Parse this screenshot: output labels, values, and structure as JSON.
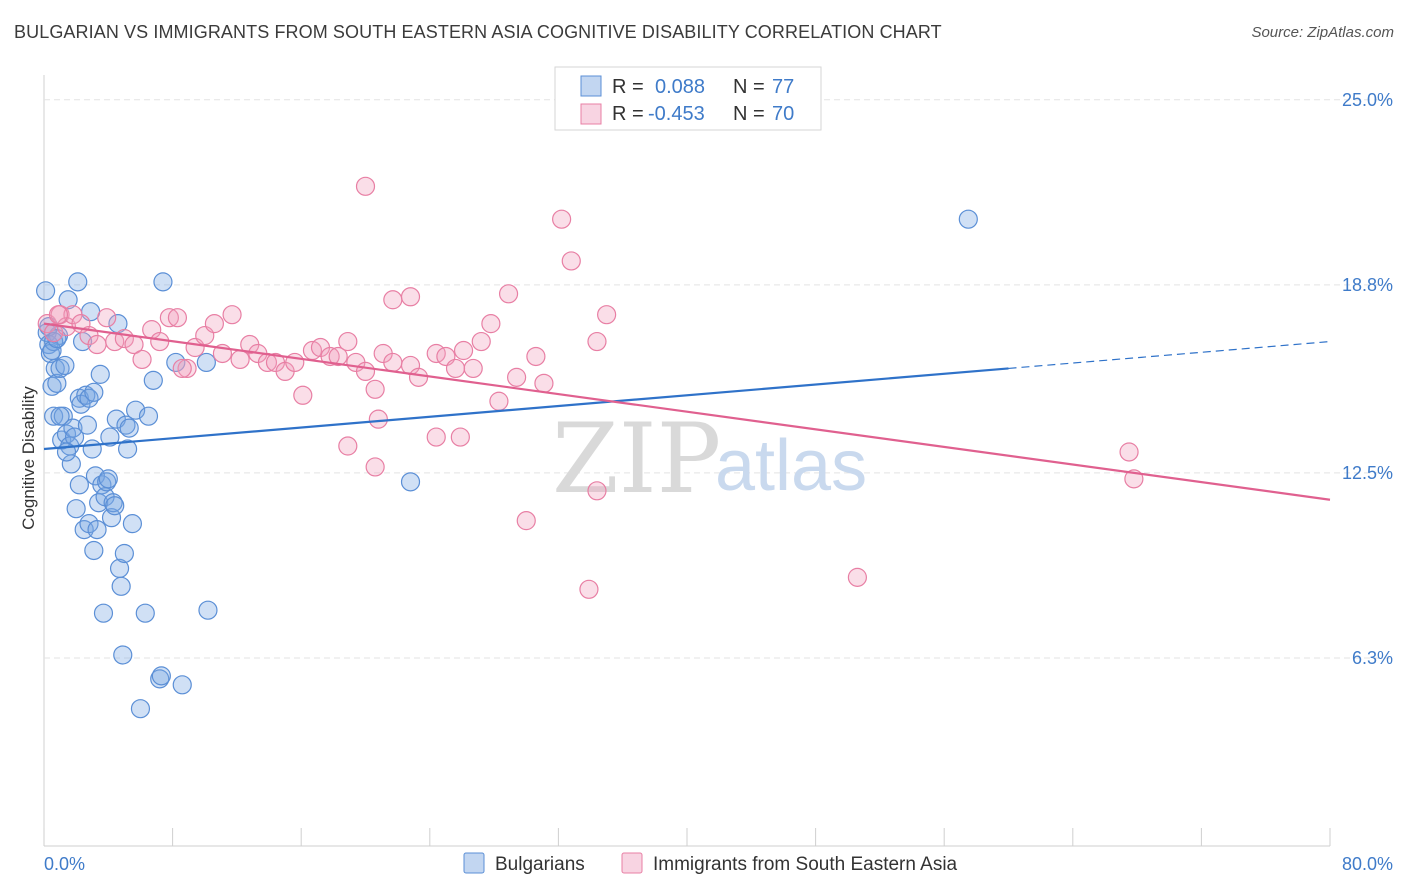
{
  "title": "BULGARIAN VS IMMIGRANTS FROM SOUTH EASTERN ASIA COGNITIVE DISABILITY CORRELATION CHART",
  "source": "Source: ZipAtlas.com",
  "watermark": {
    "zip": "ZIP",
    "atlas": "atlas"
  },
  "colors": {
    "blue": "#5b8fd6",
    "blue_fill": "rgba(120,165,225,0.35)",
    "blue_line": "#2f72c9",
    "pink": "#e87fa4",
    "pink_fill": "rgba(240,160,190,0.35)",
    "pink_line": "#e0608f",
    "tick": "#3f7bc9",
    "grid": "#e3e3e3"
  },
  "chart_data": {
    "type": "scatter",
    "xlabel": "",
    "ylabel": "Cognitive Disability",
    "xlim": [
      0,
      80
    ],
    "ylim": [
      0,
      26.5
    ],
    "x_tick_labels": [
      "0.0%",
      "80.0%"
    ],
    "y_ticks": [
      {
        "value": 25.0,
        "label": "25.0%"
      },
      {
        "value": 18.8,
        "label": "18.8%"
      },
      {
        "value": 12.5,
        "label": "12.5%"
      },
      {
        "value": 6.3,
        "label": "6.3%"
      }
    ],
    "legend": [
      {
        "r_label": "R =",
        "r_value": "0.088",
        "n_label": "N =",
        "n_value": "77"
      },
      {
        "r_label": "R =",
        "r_value": "-0.453",
        "n_label": "N =",
        "n_value": "70"
      }
    ],
    "series": [
      {
        "name": "Bulgarians",
        "color": "blue",
        "trend": {
          "x0": 0,
          "y0": 13.3,
          "x1": 60,
          "y1": 16.0,
          "dash_x1": 80,
          "dash_y1": 16.9
        },
        "points": [
          [
            0.1,
            18.6
          ],
          [
            0.2,
            17.2
          ],
          [
            0.3,
            16.8
          ],
          [
            0.4,
            16.5
          ],
          [
            0.5,
            15.4
          ],
          [
            0.6,
            14.4
          ],
          [
            0.7,
            16.0
          ],
          [
            0.8,
            15.5
          ],
          [
            0.9,
            17.1
          ],
          [
            1.0,
            16.0
          ],
          [
            1.1,
            13.6
          ],
          [
            1.2,
            14.4
          ],
          [
            1.3,
            16.1
          ],
          [
            1.4,
            13.8
          ],
          [
            1.5,
            18.3
          ],
          [
            1.6,
            13.4
          ],
          [
            1.7,
            12.8
          ],
          [
            1.8,
            14.0
          ],
          [
            1.9,
            13.7
          ],
          [
            2.0,
            11.3
          ],
          [
            2.1,
            18.9
          ],
          [
            2.2,
            15.0
          ],
          [
            2.3,
            14.8
          ],
          [
            2.4,
            16.9
          ],
          [
            2.5,
            10.6
          ],
          [
            2.6,
            15.1
          ],
          [
            2.7,
            14.1
          ],
          [
            2.8,
            10.8
          ],
          [
            2.9,
            17.9
          ],
          [
            3.0,
            13.3
          ],
          [
            3.1,
            9.9
          ],
          [
            3.2,
            12.4
          ],
          [
            3.3,
            10.6
          ],
          [
            3.4,
            11.5
          ],
          [
            3.5,
            15.8
          ],
          [
            3.6,
            12.1
          ],
          [
            3.7,
            7.8
          ],
          [
            3.8,
            11.7
          ],
          [
            3.9,
            12.2
          ],
          [
            4.0,
            12.3
          ],
          [
            4.1,
            13.7
          ],
          [
            4.2,
            11.0
          ],
          [
            4.3,
            11.5
          ],
          [
            4.4,
            11.4
          ],
          [
            4.5,
            14.3
          ],
          [
            4.6,
            17.5
          ],
          [
            4.7,
            9.3
          ],
          [
            4.8,
            8.7
          ],
          [
            4.9,
            6.4
          ],
          [
            5.0,
            9.8
          ],
          [
            5.1,
            14.1
          ],
          [
            5.2,
            13.3
          ],
          [
            5.3,
            14.0
          ],
          [
            5.5,
            10.8
          ],
          [
            5.7,
            14.6
          ],
          [
            6.0,
            4.6
          ],
          [
            6.3,
            7.8
          ],
          [
            6.5,
            14.4
          ],
          [
            6.8,
            15.6
          ],
          [
            7.2,
            5.6
          ],
          [
            7.3,
            5.7
          ],
          [
            7.4,
            18.9
          ],
          [
            8.2,
            16.2
          ],
          [
            8.6,
            5.4
          ],
          [
            10.1,
            16.2
          ],
          [
            10.2,
            7.9
          ],
          [
            22.8,
            12.2
          ],
          [
            57.5,
            21.0
          ],
          [
            0.3,
            17.4
          ],
          [
            0.6,
            16.9
          ],
          [
            1.0,
            14.4
          ],
          [
            1.4,
            13.2
          ],
          [
            2.2,
            12.1
          ],
          [
            2.8,
            15.0
          ],
          [
            3.1,
            15.2
          ],
          [
            0.5,
            16.6
          ],
          [
            0.8,
            17.0
          ]
        ]
      },
      {
        "name": "Immigrants from South Eastern Asia",
        "color": "pink",
        "trend": {
          "x0": 0,
          "y0": 17.5,
          "x1": 80,
          "y1": 11.6
        },
        "points": [
          [
            0.2,
            17.5
          ],
          [
            0.6,
            17.2
          ],
          [
            1.0,
            17.8
          ],
          [
            1.4,
            17.4
          ],
          [
            1.8,
            17.8
          ],
          [
            2.3,
            17.5
          ],
          [
            2.8,
            17.1
          ],
          [
            3.3,
            16.8
          ],
          [
            3.9,
            17.7
          ],
          [
            4.4,
            16.9
          ],
          [
            5.0,
            17.0
          ],
          [
            5.6,
            16.8
          ],
          [
            6.1,
            16.3
          ],
          [
            6.7,
            17.3
          ],
          [
            7.2,
            16.9
          ],
          [
            7.8,
            17.7
          ],
          [
            8.3,
            17.7
          ],
          [
            8.9,
            16.0
          ],
          [
            9.4,
            16.7
          ],
          [
            10.0,
            17.1
          ],
          [
            10.6,
            17.5
          ],
          [
            11.1,
            16.5
          ],
          [
            11.7,
            17.8
          ],
          [
            12.2,
            16.3
          ],
          [
            12.8,
            16.8
          ],
          [
            13.3,
            16.5
          ],
          [
            13.9,
            16.2
          ],
          [
            14.4,
            16.2
          ],
          [
            15.0,
            15.9
          ],
          [
            15.6,
            16.2
          ],
          [
            16.1,
            15.1
          ],
          [
            16.7,
            16.6
          ],
          [
            17.2,
            16.7
          ],
          [
            17.8,
            16.4
          ],
          [
            18.3,
            16.4
          ],
          [
            18.9,
            16.9
          ],
          [
            19.4,
            16.2
          ],
          [
            20.0,
            15.9
          ],
          [
            20.6,
            15.3
          ],
          [
            21.1,
            16.5
          ],
          [
            21.7,
            16.2
          ],
          [
            22.8,
            16.1
          ],
          [
            23.3,
            15.7
          ],
          [
            24.4,
            16.5
          ],
          [
            25.0,
            16.4
          ],
          [
            25.6,
            16.0
          ],
          [
            26.1,
            16.6
          ],
          [
            26.7,
            16.0
          ],
          [
            27.2,
            16.9
          ],
          [
            27.8,
            17.5
          ],
          [
            28.3,
            14.9
          ],
          [
            29.4,
            15.7
          ],
          [
            30.6,
            16.4
          ],
          [
            31.1,
            15.5
          ],
          [
            32.2,
            21.0
          ],
          [
            32.8,
            19.6
          ],
          [
            34.4,
            16.9
          ],
          [
            35.0,
            17.8
          ],
          [
            20.0,
            22.1
          ],
          [
            21.7,
            18.3
          ],
          [
            22.8,
            18.4
          ],
          [
            28.9,
            18.5
          ],
          [
            24.4,
            13.7
          ],
          [
            18.9,
            13.4
          ],
          [
            20.6,
            12.7
          ],
          [
            30.0,
            10.9
          ],
          [
            34.4,
            11.9
          ],
          [
            33.9,
            8.6
          ],
          [
            50.6,
            9.0
          ],
          [
            67.8,
            12.3
          ]
        ]
      }
    ]
  },
  "extra_pink": [
    [
      8.6,
      16.0
    ],
    [
      25.9,
      13.7
    ],
    [
      67.5,
      13.2
    ],
    [
      20.8,
      14.3
    ],
    [
      0.9,
      17.8
    ]
  ]
}
